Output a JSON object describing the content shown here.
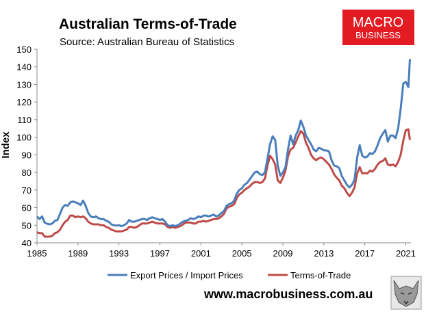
{
  "header": {
    "title": "Australian Terms-of-Trade",
    "subtitle": "Source: Australian Bureau of Statistics"
  },
  "logo": {
    "line1": "MACRO",
    "line2": "BUSINESS",
    "color": "#e31b23"
  },
  "website": "www.macrobusiness.com.au",
  "chart_data": {
    "type": "line",
    "ylabel": "Index",
    "xlabel": "",
    "xlim": [
      1985,
      2021.5
    ],
    "ylim": [
      40,
      150
    ],
    "yticks": [
      40,
      50,
      60,
      70,
      80,
      90,
      100,
      110,
      120,
      130,
      140,
      150
    ],
    "xticks": [
      1985,
      1989,
      1993,
      1997,
      2001,
      2005,
      2009,
      2013,
      2017,
      2021
    ],
    "grid": false,
    "legend": "bottom",
    "series": [
      {
        "name": "Export Prices / Import Prices",
        "color": "#4a7ebb",
        "points": [
          [
            1985.0,
            55
          ],
          [
            1985.25,
            53.5
          ],
          [
            1985.5,
            55
          ],
          [
            1985.75,
            51.5
          ],
          [
            1986.0,
            50.8
          ],
          [
            1986.25,
            50.5
          ],
          [
            1986.5,
            51
          ],
          [
            1986.75,
            52.5
          ],
          [
            1987.0,
            53
          ],
          [
            1987.25,
            56.5
          ],
          [
            1987.5,
            60
          ],
          [
            1987.75,
            61.5
          ],
          [
            1988.0,
            61
          ],
          [
            1988.25,
            63
          ],
          [
            1988.5,
            63.5
          ],
          [
            1988.75,
            63
          ],
          [
            1989.0,
            62.5
          ],
          [
            1989.25,
            61.5
          ],
          [
            1989.5,
            64
          ],
          [
            1989.75,
            61
          ],
          [
            1990.0,
            57
          ],
          [
            1990.25,
            55
          ],
          [
            1990.5,
            54.5
          ],
          [
            1990.75,
            55
          ],
          [
            1991.0,
            54
          ],
          [
            1991.25,
            53.5
          ],
          [
            1991.5,
            53.5
          ],
          [
            1991.75,
            52.5
          ],
          [
            1992.0,
            52
          ],
          [
            1992.25,
            50.5
          ],
          [
            1992.5,
            50
          ],
          [
            1992.75,
            49.8
          ],
          [
            1993.0,
            50
          ],
          [
            1993.25,
            49.5
          ],
          [
            1993.5,
            50
          ],
          [
            1993.75,
            51
          ],
          [
            1994.0,
            53
          ],
          [
            1994.25,
            52
          ],
          [
            1994.5,
            52
          ],
          [
            1994.75,
            52.5
          ],
          [
            1995.0,
            53
          ],
          [
            1995.25,
            53.5
          ],
          [
            1995.5,
            53.5
          ],
          [
            1995.75,
            53
          ],
          [
            1996.0,
            54
          ],
          [
            1996.25,
            54.5
          ],
          [
            1996.5,
            54
          ],
          [
            1996.75,
            53.5
          ],
          [
            1997.0,
            53
          ],
          [
            1997.25,
            53.5
          ],
          [
            1997.5,
            52
          ],
          [
            1997.75,
            50
          ],
          [
            1998.0,
            49.5
          ],
          [
            1998.25,
            50
          ],
          [
            1998.5,
            49.5
          ],
          [
            1998.75,
            50
          ],
          [
            1999.0,
            51
          ],
          [
            1999.25,
            52
          ],
          [
            1999.5,
            52.5
          ],
          [
            1999.75,
            53
          ],
          [
            2000.0,
            54
          ],
          [
            2000.25,
            53.5
          ],
          [
            2000.5,
            54
          ],
          [
            2000.75,
            55
          ],
          [
            2001.0,
            54.5
          ],
          [
            2001.25,
            55.5
          ],
          [
            2001.5,
            55.5
          ],
          [
            2001.75,
            55
          ],
          [
            2002.0,
            55.5
          ],
          [
            2002.25,
            56
          ],
          [
            2002.5,
            55
          ],
          [
            2002.75,
            55.5
          ],
          [
            2003.0,
            57
          ],
          [
            2003.25,
            58
          ],
          [
            2003.5,
            61
          ],
          [
            2003.75,
            62
          ],
          [
            2004.0,
            62.5
          ],
          [
            2004.25,
            64
          ],
          [
            2004.5,
            68
          ],
          [
            2004.75,
            70
          ],
          [
            2005.0,
            71
          ],
          [
            2005.25,
            73
          ],
          [
            2005.5,
            74
          ],
          [
            2005.75,
            76
          ],
          [
            2006.0,
            78
          ],
          [
            2006.25,
            80
          ],
          [
            2006.5,
            80.5
          ],
          [
            2006.75,
            79
          ],
          [
            2007.0,
            78.5
          ],
          [
            2007.25,
            80
          ],
          [
            2007.5,
            88
          ],
          [
            2007.75,
            96
          ],
          [
            2008.0,
            100.5
          ],
          [
            2008.25,
            98.5
          ],
          [
            2008.5,
            84
          ],
          [
            2008.75,
            78
          ],
          [
            2009.0,
            80
          ],
          [
            2009.25,
            83
          ],
          [
            2009.5,
            93
          ],
          [
            2009.75,
            101
          ],
          [
            2010.0,
            96
          ],
          [
            2010.25,
            101
          ],
          [
            2010.5,
            104
          ],
          [
            2010.75,
            109.5
          ],
          [
            2011.0,
            106
          ],
          [
            2011.25,
            101
          ],
          [
            2011.5,
            98.5
          ],
          [
            2011.75,
            96
          ],
          [
            2012.0,
            93
          ],
          [
            2012.25,
            92
          ],
          [
            2012.5,
            94
          ],
          [
            2012.75,
            93.5
          ],
          [
            2013.0,
            92.5
          ],
          [
            2013.25,
            92.5
          ],
          [
            2013.5,
            92
          ],
          [
            2013.75,
            87
          ],
          [
            2014.0,
            84
          ],
          [
            2014.25,
            83.5
          ],
          [
            2014.5,
            82.5
          ],
          [
            2014.75,
            78
          ],
          [
            2015.0,
            75.5
          ],
          [
            2015.25,
            73
          ],
          [
            2015.5,
            71.5
          ],
          [
            2015.75,
            73
          ],
          [
            2016.0,
            76
          ],
          [
            2016.25,
            88.5
          ],
          [
            2016.5,
            95.5
          ],
          [
            2016.75,
            89.5
          ],
          [
            2017.0,
            88.5
          ],
          [
            2017.25,
            89
          ],
          [
            2017.5,
            91
          ],
          [
            2017.75,
            90.5
          ],
          [
            2018.0,
            92
          ],
          [
            2018.25,
            95.5
          ],
          [
            2018.5,
            99.5
          ],
          [
            2018.75,
            102
          ],
          [
            2019.0,
            104
          ],
          [
            2019.25,
            97.5
          ],
          [
            2019.5,
            101
          ],
          [
            2019.75,
            101
          ],
          [
            2020.0,
            99.5
          ],
          [
            2020.25,
            105
          ],
          [
            2020.5,
            116
          ],
          [
            2020.75,
            130.5
          ],
          [
            2021.0,
            131.5
          ],
          [
            2021.25,
            128.5
          ],
          [
            2021.4,
            144.5
          ]
        ]
      },
      {
        "name": "Terms-of-Trade",
        "color": "#be4b48",
        "points": [
          [
            1985.0,
            46
          ],
          [
            1985.25,
            45.5
          ],
          [
            1985.5,
            45.5
          ],
          [
            1985.75,
            43.5
          ],
          [
            1986.0,
            43.5
          ],
          [
            1986.25,
            43.5
          ],
          [
            1986.5,
            44
          ],
          [
            1986.75,
            45.5
          ],
          [
            1987.0,
            46
          ],
          [
            1987.25,
            47.5
          ],
          [
            1987.5,
            50
          ],
          [
            1987.75,
            52
          ],
          [
            1988.0,
            53
          ],
          [
            1988.25,
            55.5
          ],
          [
            1988.5,
            55.5
          ],
          [
            1988.75,
            54.5
          ],
          [
            1989.0,
            55
          ],
          [
            1989.25,
            54.5
          ],
          [
            1989.5,
            55
          ],
          [
            1989.75,
            54
          ],
          [
            1990.0,
            52
          ],
          [
            1990.25,
            51
          ],
          [
            1990.5,
            50.5
          ],
          [
            1990.75,
            50.5
          ],
          [
            1991.0,
            50.5
          ],
          [
            1991.25,
            50
          ],
          [
            1991.5,
            50
          ],
          [
            1991.75,
            49
          ],
          [
            1992.0,
            48.5
          ],
          [
            1992.25,
            47.5
          ],
          [
            1992.5,
            47
          ],
          [
            1992.75,
            46.5
          ],
          [
            1993.0,
            46.5
          ],
          [
            1993.25,
            46.5
          ],
          [
            1993.5,
            47
          ],
          [
            1993.75,
            47.5
          ],
          [
            1994.0,
            49
          ],
          [
            1994.25,
            49
          ],
          [
            1994.5,
            48.5
          ],
          [
            1994.75,
            49
          ],
          [
            1995.0,
            50
          ],
          [
            1995.25,
            51
          ],
          [
            1995.5,
            51
          ],
          [
            1995.75,
            51
          ],
          [
            1996.0,
            51.5
          ],
          [
            1996.25,
            52
          ],
          [
            1996.5,
            51.5
          ],
          [
            1996.75,
            51
          ],
          [
            1997.0,
            51
          ],
          [
            1997.25,
            51
          ],
          [
            1997.5,
            50.5
          ],
          [
            1997.75,
            49
          ],
          [
            1998.0,
            48.5
          ],
          [
            1998.25,
            49
          ],
          [
            1998.5,
            48.5
          ],
          [
            1998.75,
            49
          ],
          [
            1999.0,
            49.5
          ],
          [
            1999.25,
            50.5
          ],
          [
            1999.5,
            51.5
          ],
          [
            1999.75,
            51.5
          ],
          [
            2000.0,
            51.5
          ],
          [
            2000.25,
            51
          ],
          [
            2000.5,
            51
          ],
          [
            2000.75,
            52
          ],
          [
            2001.0,
            52
          ],
          [
            2001.25,
            52.5
          ],
          [
            2001.5,
            52
          ],
          [
            2001.75,
            52.5
          ],
          [
            2002.0,
            53
          ],
          [
            2002.25,
            53.5
          ],
          [
            2002.5,
            53.5
          ],
          [
            2002.75,
            54
          ],
          [
            2003.0,
            55
          ],
          [
            2003.25,
            56.5
          ],
          [
            2003.5,
            59.5
          ],
          [
            2003.75,
            60.5
          ],
          [
            2004.0,
            61
          ],
          [
            2004.25,
            62
          ],
          [
            2004.5,
            65.5
          ],
          [
            2004.75,
            67.5
          ],
          [
            2005.0,
            68.5
          ],
          [
            2005.25,
            70
          ],
          [
            2005.5,
            71
          ],
          [
            2005.75,
            72
          ],
          [
            2006.0,
            73.5
          ],
          [
            2006.25,
            74.5
          ],
          [
            2006.5,
            74.5
          ],
          [
            2006.75,
            74
          ],
          [
            2007.0,
            74.5
          ],
          [
            2007.25,
            76.5
          ],
          [
            2007.5,
            84
          ],
          [
            2007.75,
            89.5
          ],
          [
            2008.0,
            87.5
          ],
          [
            2008.25,
            84.5
          ],
          [
            2008.5,
            75.5
          ],
          [
            2008.75,
            74
          ],
          [
            2009.0,
            77
          ],
          [
            2009.25,
            81
          ],
          [
            2009.5,
            89
          ],
          [
            2009.75,
            93
          ],
          [
            2010.0,
            94
          ],
          [
            2010.25,
            97
          ],
          [
            2010.5,
            100.5
          ],
          [
            2010.75,
            103.5
          ],
          [
            2011.0,
            102
          ],
          [
            2011.25,
            97
          ],
          [
            2011.5,
            94
          ],
          [
            2011.75,
            90
          ],
          [
            2012.0,
            88
          ],
          [
            2012.25,
            87
          ],
          [
            2012.5,
            88
          ],
          [
            2012.75,
            88.5
          ],
          [
            2013.0,
            87.5
          ],
          [
            2013.25,
            86
          ],
          [
            2013.5,
            84.5
          ],
          [
            2013.75,
            82
          ],
          [
            2014.0,
            79
          ],
          [
            2014.25,
            77
          ],
          [
            2014.5,
            75.5
          ],
          [
            2014.75,
            72.5
          ],
          [
            2015.0,
            71
          ],
          [
            2015.25,
            68.5
          ],
          [
            2015.5,
            66.5
          ],
          [
            2015.75,
            68.5
          ],
          [
            2016.0,
            71.5
          ],
          [
            2016.25,
            79.5
          ],
          [
            2016.5,
            83
          ],
          [
            2016.75,
            79.5
          ],
          [
            2017.0,
            79.5
          ],
          [
            2017.25,
            79.5
          ],
          [
            2017.5,
            81
          ],
          [
            2017.75,
            80.5
          ],
          [
            2018.0,
            82
          ],
          [
            2018.25,
            84.5
          ],
          [
            2018.5,
            86
          ],
          [
            2018.75,
            86.5
          ],
          [
            2019.0,
            88
          ],
          [
            2019.25,
            84.5
          ],
          [
            2019.5,
            84
          ],
          [
            2019.75,
            84.5
          ],
          [
            2020.0,
            83.5
          ],
          [
            2020.25,
            86
          ],
          [
            2020.5,
            90
          ],
          [
            2020.75,
            98
          ],
          [
            2021.0,
            104
          ],
          [
            2021.25,
            104.5
          ],
          [
            2021.4,
            98.5
          ]
        ]
      }
    ]
  }
}
